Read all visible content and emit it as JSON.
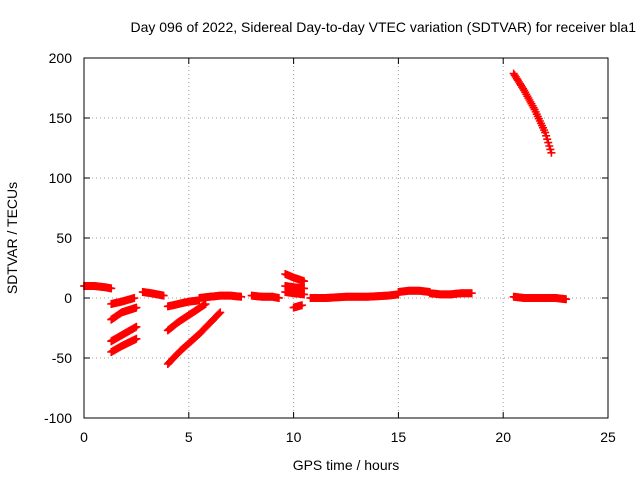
{
  "chart_data": {
    "type": "scatter",
    "title": "Day 096 of 2022, Sidereal Day-to-day VTEC variation (SDTVAR) for receiver bla1",
    "xlabel": "GPS time / hours",
    "ylabel": "SDTVAR / TECUs",
    "xlim": [
      0,
      25
    ],
    "ylim": [
      -100,
      200
    ],
    "xticks": [
      0,
      5,
      10,
      15,
      20,
      25
    ],
    "yticks": [
      -100,
      -50,
      0,
      50,
      100,
      150,
      200
    ],
    "grid": true,
    "marker": "+",
    "color": "#ff0000",
    "segments": [
      {
        "x": [
          0.0,
          0.5,
          1.0,
          1.3
        ],
        "y": [
          10,
          10,
          9,
          8
        ]
      },
      {
        "x": [
          1.3,
          1.8,
          2.4
        ],
        "y": [
          -5,
          -3,
          0
        ]
      },
      {
        "x": [
          1.3,
          1.8,
          2.5
        ],
        "y": [
          -18,
          -12,
          -8
        ]
      },
      {
        "x": [
          1.3,
          1.9,
          2.5
        ],
        "y": [
          -36,
          -30,
          -24
        ]
      },
      {
        "x": [
          1.3,
          1.8,
          2.5
        ],
        "y": [
          -45,
          -40,
          -34
        ]
      },
      {
        "x": [
          2.8,
          3.2,
          3.8
        ],
        "y": [
          5,
          4,
          2
        ]
      },
      {
        "x": [
          4.0,
          4.5,
          5.0,
          5.5
        ],
        "y": [
          -7,
          -5,
          -3,
          -2
        ]
      },
      {
        "x": [
          4.0,
          4.5,
          5.2,
          5.8
        ],
        "y": [
          -27,
          -20,
          -12,
          -5
        ]
      },
      {
        "x": [
          4.0,
          4.6,
          5.5,
          6.5
        ],
        "y": [
          -55,
          -44,
          -30,
          -12
        ]
      },
      {
        "x": [
          5.5,
          6.0,
          6.5,
          7.0,
          7.5
        ],
        "y": [
          0,
          1,
          2,
          2,
          1
        ]
      },
      {
        "x": [
          8.0,
          8.5,
          9.0,
          9.3
        ],
        "y": [
          2,
          1,
          1,
          0
        ]
      },
      {
        "x": [
          9.6,
          10.0,
          10.5
        ],
        "y": [
          20,
          17,
          14
        ]
      },
      {
        "x": [
          9.6,
          10.0,
          10.5
        ],
        "y": [
          10,
          9,
          8
        ]
      },
      {
        "x": [
          9.6,
          10.0,
          10.5
        ],
        "y": [
          5,
          4,
          3
        ]
      },
      {
        "x": [
          10.0,
          10.4
        ],
        "y": [
          -8,
          -6
        ]
      },
      {
        "x": [
          10.8,
          11.5,
          12.5,
          13.5,
          14.5,
          15.0
        ],
        "y": [
          0,
          0,
          1,
          1,
          2,
          3
        ]
      },
      {
        "x": [
          15.0,
          15.5,
          16.0,
          16.5
        ],
        "y": [
          5,
          6,
          6,
          5
        ]
      },
      {
        "x": [
          16.5,
          17.0,
          17.5
        ],
        "y": [
          4,
          3,
          3
        ]
      },
      {
        "x": [
          17.5,
          18.0,
          18.5
        ],
        "y": [
          3,
          4,
          4
        ]
      },
      {
        "x": [
          20.5,
          21.0,
          21.5,
          22.0,
          22.3
        ],
        "y": [
          187,
          173,
          157,
          138,
          121
        ]
      },
      {
        "x": [
          20.5,
          21.0,
          21.5,
          22.0,
          22.5,
          23.0
        ],
        "y": [
          1,
          0,
          0,
          0,
          0,
          -1
        ]
      }
    ]
  }
}
